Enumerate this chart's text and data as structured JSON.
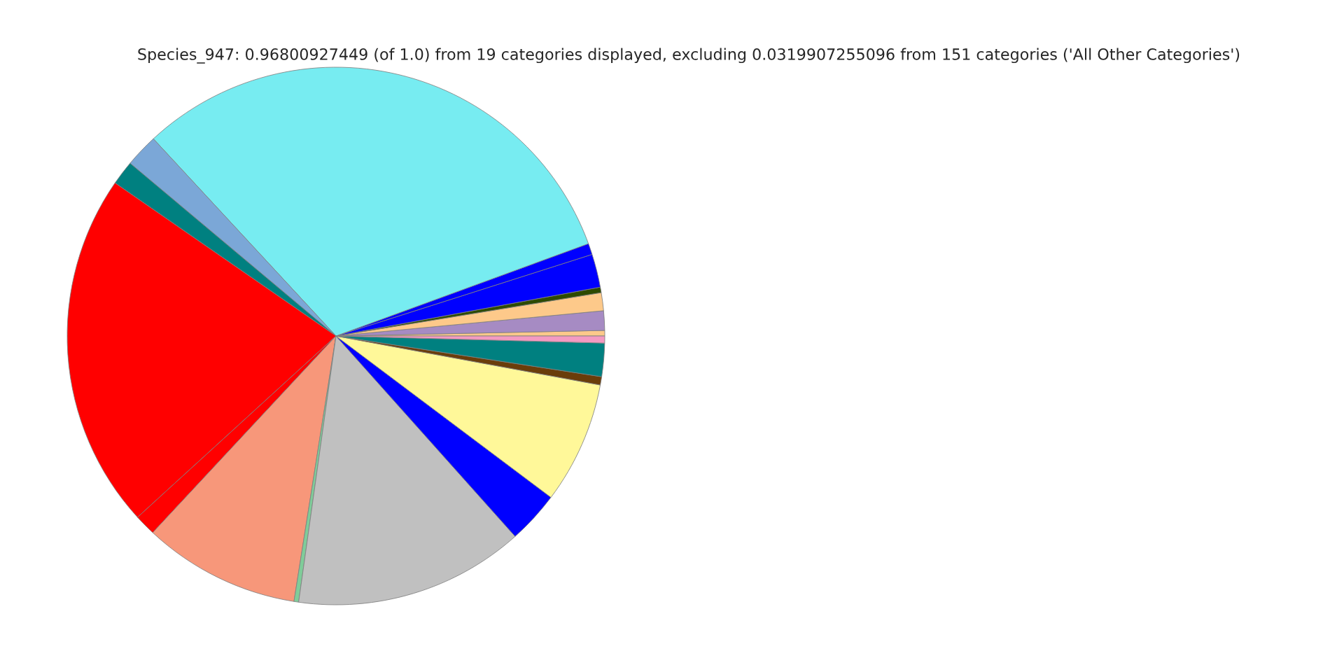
{
  "chart_data": {
    "type": "pie",
    "title": "Species_947: 0.96800927449 (of 1.0) from 19 categories displayed, excluding 0.0319907255096 from 151 categories ('All Other Categories')",
    "categories": [
      null,
      null,
      null,
      null,
      null,
      null,
      null,
      null,
      null,
      null,
      null,
      null,
      null,
      null,
      null,
      null,
      null,
      null,
      null
    ],
    "values": [
      0.33,
      1.17,
      1.08,
      0.33,
      2.0,
      0.67,
      31.31,
      2.0,
      1.47,
      21.42,
      1.28,
      9.44,
      0.28,
      13.83,
      3.14,
      7.33,
      0.5,
      2.0,
      0.42
    ],
    "colors": [
      "#fdc98a",
      "#a68bc3",
      "#fdc98a",
      "#2d4a00",
      "#0000ff",
      "#0000ff",
      "#77ecf1",
      "#7ba7d7",
      "#008080",
      "#ff0000",
      "#ff0000",
      "#f7977a",
      "#7fcc99",
      "#c0c0c0",
      "#0000ff",
      "#fff899",
      "#6a3d0a",
      "#008080",
      "#f49ac2"
    ]
  }
}
